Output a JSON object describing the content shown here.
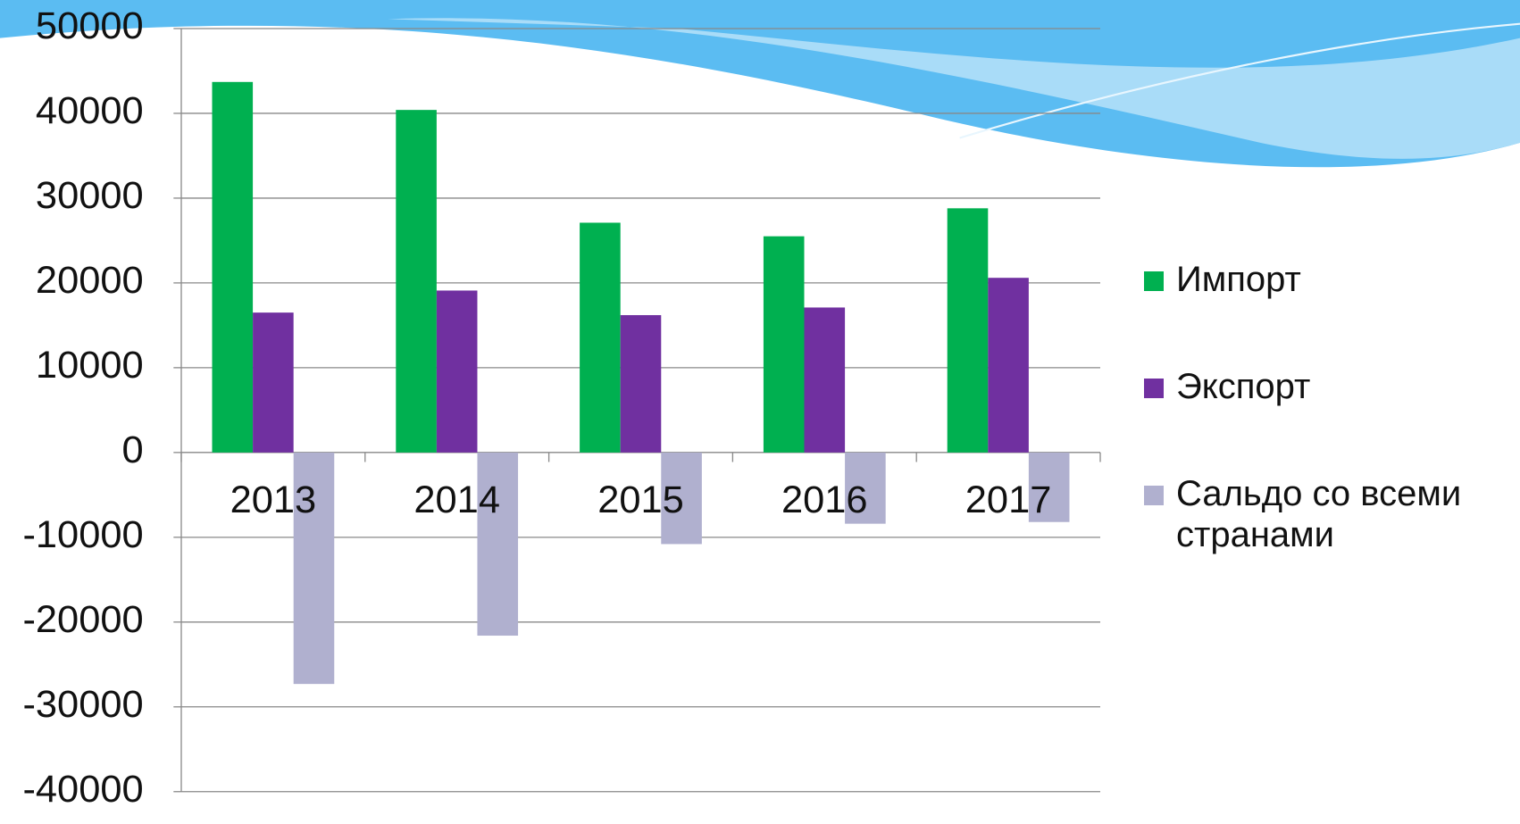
{
  "chart_data": {
    "type": "bar",
    "categories": [
      "2013",
      "2014",
      "2015",
      "2016",
      "2017"
    ],
    "series": [
      {
        "name": "Импорт",
        "color": "#00b050",
        "values": [
          43700,
          40400,
          27100,
          25500,
          28800
        ]
      },
      {
        "name": "Экспорт",
        "color": "#7030a0",
        "values": [
          16500,
          19100,
          16200,
          17100,
          20600
        ]
      },
      {
        "name": "Сальдо со всеми странами",
        "color": "#b0b0cf",
        "values": [
          -27300,
          -21600,
          -10800,
          -8400,
          -8200
        ]
      }
    ],
    "ylim": [
      -40000,
      50000
    ],
    "yticks": [
      -40000,
      -30000,
      -20000,
      -10000,
      0,
      10000,
      20000,
      30000,
      40000,
      50000
    ],
    "grid": true,
    "legend": "right"
  }
}
